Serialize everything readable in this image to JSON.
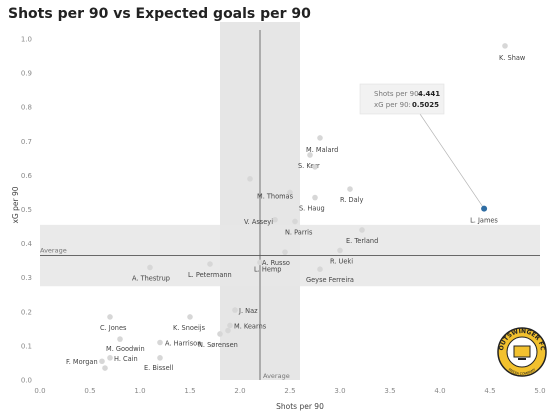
{
  "chart_data": {
    "type": "scatter",
    "title": "Shots per 90 vs Expected goals per 90",
    "xlabel": "Shots per 90",
    "ylabel": "xG per 90",
    "xlim": [
      0,
      5
    ],
    "ylim": [
      0,
      1.05
    ],
    "x_ticks": [
      "0.0",
      "0.5",
      "1.0",
      "1.5",
      "2.0",
      "2.5",
      "3.0",
      "3.5",
      "4.0",
      "4.5",
      "5.0"
    ],
    "y_ticks": [
      "0.0",
      "0.1",
      "0.2",
      "0.3",
      "0.4",
      "0.5",
      "0.6",
      "0.7",
      "0.8",
      "0.9",
      "1.0"
    ],
    "grid": false,
    "average": {
      "x": 2.2,
      "y": 0.365,
      "label": "Average"
    },
    "band_x": [
      1.8,
      2.6
    ],
    "band_y": [
      0.275,
      0.455
    ],
    "highlight_color": "#2f6da3",
    "point_color": "#d7d7d7",
    "points": [
      {
        "name": "K. Shaw",
        "x": 4.65,
        "y": 0.98
      },
      {
        "name": "M. Malard",
        "x": 2.8,
        "y": 0.71
      },
      {
        "name": "S. Kerr",
        "x": 2.7,
        "y": 0.66
      },
      {
        "name": "",
        "x": 2.75,
        "y": 0.625
      },
      {
        "name": "",
        "x": 2.1,
        "y": 0.59
      },
      {
        "name": "M. Thomas",
        "x": 2.5,
        "y": 0.55
      },
      {
        "name": "S. Haug",
        "x": 2.75,
        "y": 0.535
      },
      {
        "name": "R. Daly",
        "x": 3.1,
        "y": 0.56
      },
      {
        "name": "L. James",
        "x": 4.441,
        "y": 0.5025,
        "highlight": true
      },
      {
        "name": "V. Asseyi",
        "x": 2.35,
        "y": 0.47
      },
      {
        "name": "N. Parris",
        "x": 2.55,
        "y": 0.465
      },
      {
        "name": "E. Terland",
        "x": 3.22,
        "y": 0.44
      },
      {
        "name": "A. Russo",
        "x": 2.45,
        "y": 0.375
      },
      {
        "name": "R. Ueki",
        "x": 3.0,
        "y": 0.38
      },
      {
        "name": "L. Hemp",
        "x": 2.2,
        "y": 0.345
      },
      {
        "name": "L. Petermann",
        "x": 1.7,
        "y": 0.34
      },
      {
        "name": "A. Thestrup",
        "x": 1.1,
        "y": 0.33
      },
      {
        "name": "Geyse Ferreira",
        "x": 2.8,
        "y": 0.325
      },
      {
        "name": "J. Naz",
        "x": 1.95,
        "y": 0.205
      },
      {
        "name": "C. Jones",
        "x": 0.7,
        "y": 0.185
      },
      {
        "name": "K. Snoeijs",
        "x": 1.5,
        "y": 0.185
      },
      {
        "name": "M. Kearns",
        "x": 1.9,
        "y": 0.16
      },
      {
        "name": "",
        "x": 1.88,
        "y": 0.145
      },
      {
        "name": "N. Sørensen",
        "x": 1.8,
        "y": 0.135
      },
      {
        "name": "M. Goodwin",
        "x": 0.8,
        "y": 0.12
      },
      {
        "name": "A. Harrison",
        "x": 1.2,
        "y": 0.11
      },
      {
        "name": "H. Cain",
        "x": 0.7,
        "y": 0.065
      },
      {
        "name": "F. Morgan",
        "x": 0.62,
        "y": 0.055
      },
      {
        "name": "E. Bissell",
        "x": 1.2,
        "y": 0.065
      },
      {
        "name": "",
        "x": 0.65,
        "y": 0.035
      }
    ],
    "tooltip": {
      "x_label": "Shots per 90:",
      "x_value": "4.441",
      "y_label": "xG per 90:",
      "y_value": "0.5025"
    }
  },
  "logo": {
    "text_top": "OUTSWINGER FC",
    "text_bottom": "MEDIA COMPANY"
  }
}
